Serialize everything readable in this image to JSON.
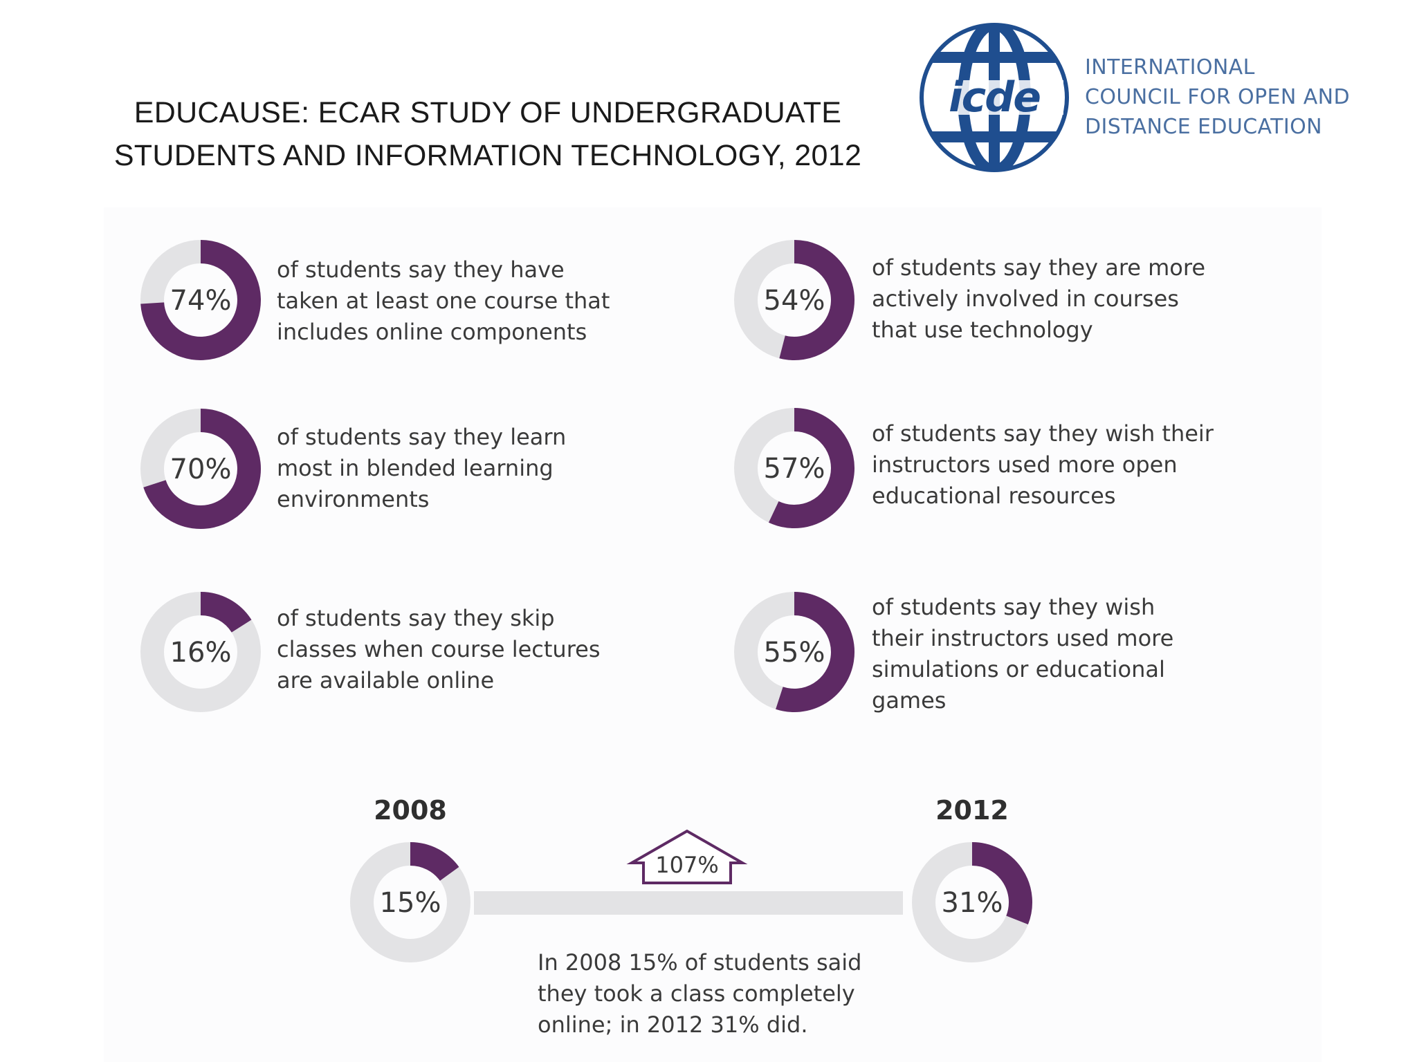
{
  "title": {
    "line1": "EDUCAUSE: ECAR STUDY OF UNDERGRADUATE",
    "line2": "STUDENTS AND INFORMATION TECHNOLOGY, 2012"
  },
  "logo": {
    "mark_text": "icde",
    "line1": "INTERNATIONAL",
    "line2": "COUNCIL FOR OPEN AND",
    "line3": "DISTANCE EDUCATION"
  },
  "colors": {
    "accent": "#5e2a64",
    "track": "#e3e3e5",
    "text": "#3a3a3a",
    "logo_blue": "#1f4e8f",
    "logo_text": "#4a6fa1"
  },
  "chart_data": {
    "type": "donut",
    "stats": [
      {
        "percent": 74,
        "label": "74%",
        "text": [
          "of students say they have",
          "taken at least one course that",
          "includes online components"
        ]
      },
      {
        "percent": 70,
        "label": "70%",
        "text": [
          "of students say they learn",
          "most in blended learning",
          "environments"
        ]
      },
      {
        "percent": 16,
        "label": "16%",
        "text": [
          "of students say they skip",
          "classes when course lectures",
          "are available online"
        ]
      },
      {
        "percent": 54,
        "label": "54%",
        "text": [
          "of students say they are more",
          "actively involved in courses",
          "that use technology"
        ]
      },
      {
        "percent": 57,
        "label": "57%",
        "text": [
          "of students say they wish their",
          "instructors used more open",
          "educational resources"
        ]
      },
      {
        "percent": 55,
        "label": "55%",
        "text": [
          "of students say they wish",
          "their instructors used more",
          "simulations or educational",
          "games"
        ]
      }
    ],
    "trend": {
      "start": {
        "year": "2008",
        "percent": 15,
        "label": "15%"
      },
      "end": {
        "year": "2012",
        "percent": 31,
        "label": "31%"
      },
      "growth_label": "107%",
      "caption": [
        "In 2008 15% of students said",
        "they took a class completely",
        "online; in 2012 31% did."
      ]
    }
  }
}
